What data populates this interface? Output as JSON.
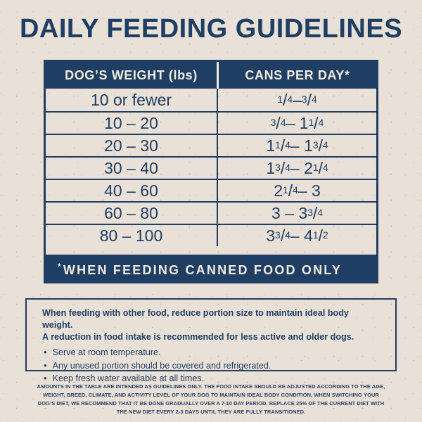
{
  "page": {
    "title": "DAILY FEEDING GUIDELINES"
  },
  "table": {
    "headers": [
      "DOG’S WEIGHT (lbs)",
      "CANS PER DAY*"
    ],
    "rows": [
      {
        "weight": "10 or fewer",
        "cans": "1/4 – 3/4"
      },
      {
        "weight": "10 – 20",
        "cans": "3/4 – 1 1/4"
      },
      {
        "weight": "20 – 30",
        "cans": "1 1/4 – 1 3/4"
      },
      {
        "weight": "30 – 40",
        "cans": "1 3/4 – 2 1/4"
      },
      {
        "weight": "40 – 60",
        "cans": "2 1/4 – 3"
      },
      {
        "weight": "60 – 80",
        "cans": "3 – 3 3/4"
      },
      {
        "weight": "80 – 100",
        "cans": "3 3/4 – 4 1/2"
      }
    ],
    "footnote": {
      "mark": "*",
      "text": "WHEN FEEDING CANNED FOOD ONLY"
    }
  },
  "info_box": {
    "intro_lines": [
      "When feeding with other food, reduce portion size to maintain ideal body weight.",
      "A reduction in food intake is recommended for less active and older dogs."
    ],
    "bullets": [
      "Serve at room temperature.",
      "Any unused portion should be covered and refrigerated.",
      "Keep fresh water available at all times."
    ]
  },
  "fine_print": "AMOUNTS IN THE TABLE ARE INTENDED AS GUIDELINES ONLY. THE FOOD INTAKE SHOULD BE ADJUSTED ACCORDING TO THE AGE, WEIGHT, BREED, CLIMATE, AND ACTIVITY LEVEL OF YOUR DOG TO MAINTAIN IDEAL BODY CONDITION. WHEN SWITCHING YOUR DOG’S DIET, WE RECOMMEND THAT IT BE DONE GRADUALLY OVER A 7-10 DAY PERIOD. REPLACE 25% OF THE CURRENT DIET WITH THE NEW DIET EVERY 2-3 DAYS UNTIL THEY ARE FULLY TRANSITIONED.",
  "colors": {
    "navy": "#1f3e63",
    "cream": "#e9e1d7",
    "text-on-navy": "#f2ebe1"
  }
}
